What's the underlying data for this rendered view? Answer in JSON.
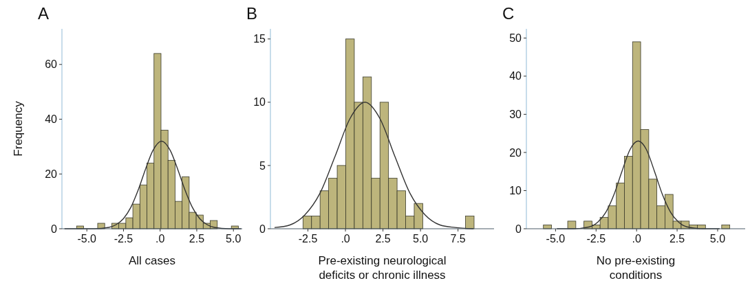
{
  "chart_data": [
    {
      "type": "histogram",
      "title": "A",
      "xlabel": "All cases",
      "ylabel": "Frequency",
      "color": "#bdb57c",
      "bins": [
        -5.7,
        -5.22,
        -4.74,
        -4.26,
        -3.78,
        -3.3,
        -2.82,
        -2.34,
        -1.86,
        -1.38,
        -0.9,
        -0.42,
        0.06,
        0.54,
        1.02,
        1.5,
        1.98,
        2.46,
        2.94,
        3.42,
        3.9,
        4.38,
        4.86,
        5.34
      ],
      "values": [
        1,
        0,
        0,
        2,
        0,
        2,
        2,
        4,
        9,
        16,
        24,
        64,
        36,
        25,
        10,
        19,
        6,
        5,
        2,
        3,
        0,
        0,
        1
      ],
      "series": [
        {
          "type": "line",
          "color": "#333333",
          "x": [
            -6.5,
            -4.5,
            -3.5,
            -3,
            -2.5,
            -2,
            -1.5,
            -1,
            -0.5,
            0.1,
            0.7,
            1.2,
            1.7,
            2.2,
            2.7,
            3.2,
            3.7,
            4.7,
            5.5
          ],
          "values": [
            0,
            0,
            0.5,
            1.5,
            3.7,
            7.8,
            14.1,
            21.7,
            28.5,
            32,
            28.5,
            21.7,
            14.1,
            7.8,
            3.7,
            1.5,
            0.5,
            0,
            0
          ]
        }
      ],
      "xlim": [
        -6.7,
        5.6
      ],
      "ylim": [
        0,
        73
      ],
      "xticks": [
        {
          "value": -5,
          "label": "-5.0"
        },
        {
          "value": -2.5,
          "label": "-2.5"
        },
        {
          "value": 0,
          "label": ".0"
        },
        {
          "value": 2.5,
          "label": "2.5"
        },
        {
          "value": 5,
          "label": "5.0"
        }
      ],
      "yticks": [
        0,
        20,
        40,
        60
      ]
    },
    {
      "type": "histogram",
      "title": "B",
      "xlabel": "Pre-existing neurological deficits or chronic illness",
      "color": "#bdb57c",
      "bins": [
        -2.83,
        -2.26,
        -1.69,
        -1.12,
        -0.55,
        0.02,
        0.59,
        1.16,
        1.73,
        2.3,
        2.87,
        3.44,
        4.01,
        4.58,
        5.15,
        5.72,
        6.29,
        6.86,
        7.43,
        8.0,
        8.57
      ],
      "values": [
        1,
        1,
        3,
        4,
        5,
        15,
        10,
        12,
        4,
        10,
        4,
        3,
        1,
        2,
        0,
        0,
        0,
        0,
        0,
        1
      ],
      "series": [
        {
          "type": "line",
          "color": "#333333",
          "x": [
            -4.7,
            -3.7,
            -2.7,
            -1.7,
            -0.7,
            0.3,
            1.3,
            2.3,
            3.3,
            4.3,
            5.3,
            6.3,
            7.3,
            8.5
          ],
          "values": [
            0.1,
            0.3,
            1.1,
            2.8,
            5.7,
            8.7,
            10,
            8.7,
            5.7,
            2.8,
            1.1,
            0.3,
            0.1,
            0
          ]
        }
      ],
      "xlim": [
        -5.0,
        9.9
      ],
      "ylim": [
        0,
        15.8
      ],
      "xticks": [
        {
          "value": -2.5,
          "label": "-2.5"
        },
        {
          "value": 0,
          "label": ".0"
        },
        {
          "value": 2.5,
          "label": "2.5"
        },
        {
          "value": 5,
          "label": "5.0"
        },
        {
          "value": 7.5,
          "label": "7.5"
        }
      ],
      "yticks": [
        0,
        5,
        10,
        15
      ]
    },
    {
      "type": "histogram",
      "title": "C",
      "xlabel": "No pre-existing conditions",
      "color": "#bdb57c",
      "bins": [
        -5.75,
        -5.25,
        -4.75,
        -4.25,
        -3.75,
        -3.25,
        -2.75,
        -2.25,
        -1.75,
        -1.25,
        -0.75,
        -0.25,
        0.25,
        0.75,
        1.25,
        1.75,
        2.25,
        2.75,
        3.25,
        3.75,
        4.25,
        4.75,
        5.25,
        5.75
      ],
      "values": [
        1,
        0,
        0,
        2,
        0,
        2,
        1,
        3,
        6,
        12,
        19,
        49,
        26,
        13,
        6,
        9,
        2,
        2,
        1,
        1,
        0,
        0,
        1
      ],
      "series": [
        {
          "type": "line",
          "color": "#333333",
          "x": [
            -4.9,
            -3.9,
            -2.9,
            -2.4,
            -1.9,
            -1.4,
            -0.9,
            -0.4,
            0.1,
            0.6,
            1.1,
            1.6,
            2.1,
            2.6,
            3.1,
            4.1,
            5.1
          ],
          "values": [
            0,
            0,
            0.5,
            1.7,
            4.3,
            8.9,
            15.1,
            20.8,
            23,
            20.8,
            15.1,
            8.9,
            4.3,
            1.7,
            0.5,
            0,
            0
          ]
        }
      ],
      "xlim": [
        -6.8,
        6.7
      ],
      "ylim": [
        0,
        52.4
      ],
      "xticks": [
        {
          "value": -5,
          "label": "-5.0"
        },
        {
          "value": -2.5,
          "label": "-2.5"
        },
        {
          "value": 0,
          "label": ".0"
        },
        {
          "value": 2.5,
          "label": "2.5"
        },
        {
          "value": 5,
          "label": "5.0"
        }
      ],
      "yticks": [
        0,
        10,
        20,
        30,
        40,
        50
      ]
    }
  ]
}
